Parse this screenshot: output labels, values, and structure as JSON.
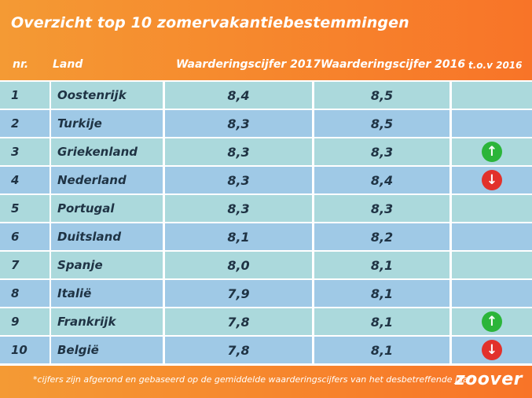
{
  "title": "Overzicht top 10 zomervakantiebestemmingen",
  "headers": {
    "nr": "nr.",
    "land": "Land",
    "y2017": "Waarderingscijfer 2017",
    "y2016": "Waarderingscijfer 2016",
    "tov": "t.o.v 2016"
  },
  "colors": {
    "header_bg": "#f68b2e",
    "row_light": "#abd9dc",
    "row_dark": "#9fc9e6",
    "arrow_up": "#2bb53a",
    "arrow_down": "#e2312b"
  },
  "rows": [
    {
      "nr": "1",
      "land": "Oostenrijk",
      "y2017": "8,4",
      "y2016": "8,5",
      "trend": ""
    },
    {
      "nr": "2",
      "land": "Turkije",
      "y2017": "8,3",
      "y2016": "8,5",
      "trend": ""
    },
    {
      "nr": "3",
      "land": "Griekenland",
      "y2017": "8,3",
      "y2016": "8,3",
      "trend": "up-arrow-icon"
    },
    {
      "nr": "4",
      "land": "Nederland",
      "y2017": "8,3",
      "y2016": "8,4",
      "trend": "down-arrow-icon"
    },
    {
      "nr": "5",
      "land": "Portugal",
      "y2017": "8,3",
      "y2016": "8,3",
      "trend": ""
    },
    {
      "nr": "6",
      "land": "Duitsland",
      "y2017": "8,1",
      "y2016": "8,2",
      "trend": ""
    },
    {
      "nr": "7",
      "land": "Spanje",
      "y2017": "8,0",
      "y2016": "8,1",
      "trend": ""
    },
    {
      "nr": "8",
      "land": "Italië",
      "y2017": "7,9",
      "y2016": "8,1",
      "trend": ""
    },
    {
      "nr": "9",
      "land": "Frankrijk",
      "y2017": "7,8",
      "y2016": "8,1",
      "trend": "up-arrow-icon"
    },
    {
      "nr": "10",
      "land": "België",
      "y2017": "7,8",
      "y2016": "8,1",
      "trend": "down-arrow-icon"
    }
  ],
  "footnote": "*cijfers zijn afgerond en gebaseerd op de gemiddelde waarderingscijfers van het desbetreffende jaar",
  "logo": "zoover"
}
